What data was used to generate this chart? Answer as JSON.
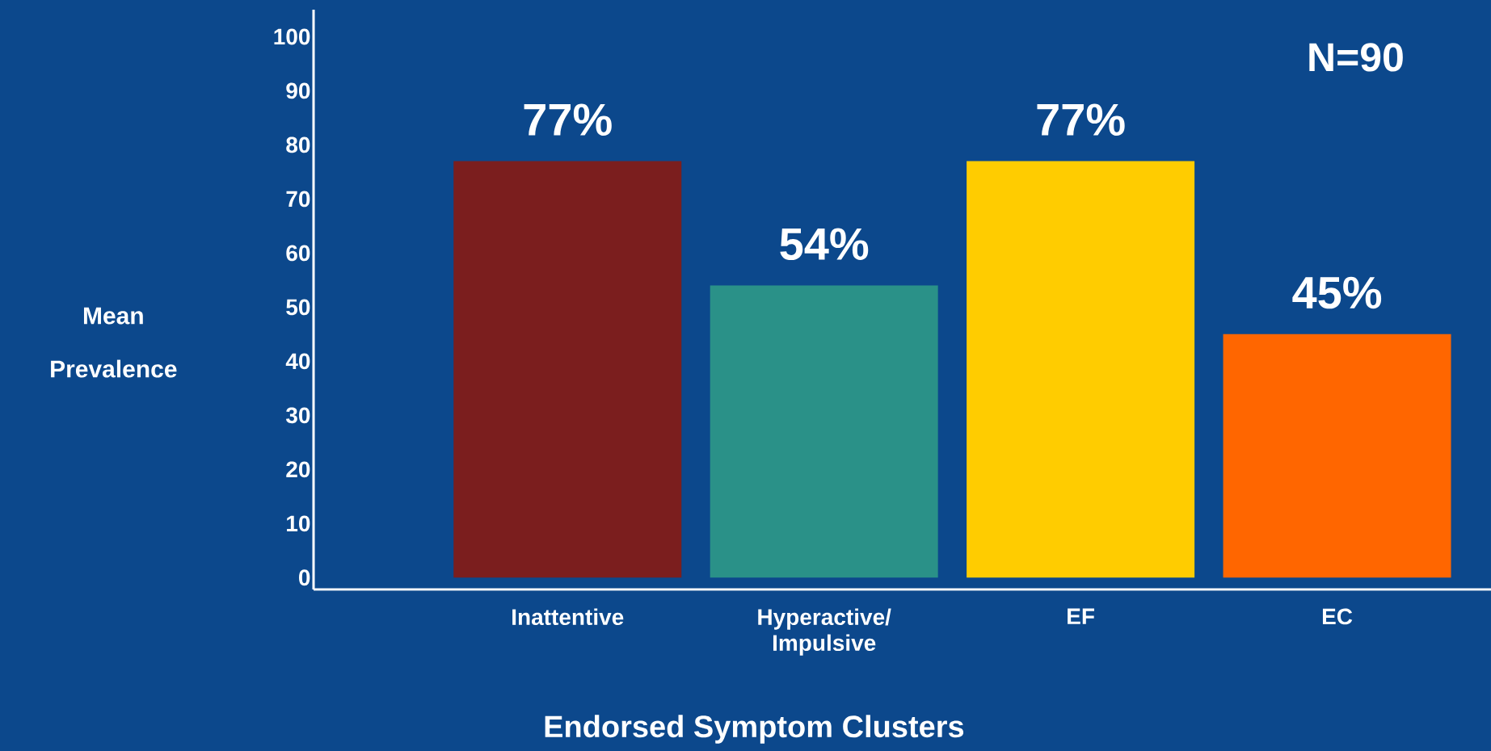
{
  "chart_data": {
    "type": "bar",
    "xlabel": "Endorsed Symptom Clusters",
    "ylabel": "Mean Prevalence",
    "categories": [
      "Inattentive",
      "Hyperactive/ Impulsive",
      "EF",
      "EC"
    ],
    "values": [
      77,
      54,
      77,
      45
    ],
    "colors": [
      "#7b1e1e",
      "#2a9188",
      "#ffcc00",
      "#ff6600"
    ],
    "value_labels": [
      "77%",
      "54%",
      "77%",
      "45%"
    ],
    "ylim": [
      -2.2,
      105
    ],
    "yticks": [
      0,
      10,
      20,
      30,
      40,
      50,
      60,
      70,
      80,
      90,
      100
    ],
    "annotations": [
      "N=90"
    ]
  }
}
